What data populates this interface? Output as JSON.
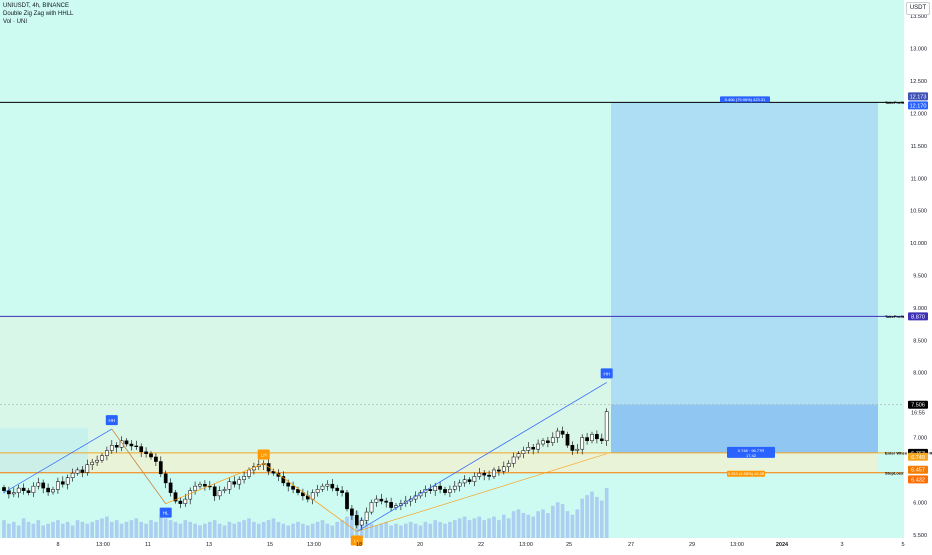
{
  "header": {
    "symbol_line": "UNIUSDT, 4h, BINANCE",
    "indicator_line": "Double Zig Zag with HHLL",
    "volume_line": "Vol · UNI",
    "currency_badge": "USDT"
  },
  "colors": {
    "background": "#cdfaf1",
    "candle_up": "#ffffff",
    "candle_down": "#000000",
    "zigzag_blue": "#2962ff",
    "zigzag_orange": "#ff9800",
    "target_zone": "#a7d8f3",
    "entry_zone": "#e9f3d8",
    "takeprofit_line": "#000000",
    "takeprofit2_line": "#3f2fb5",
    "entry_line": "#f5a623",
    "stoploss_line": "#f57c00"
  },
  "chart_data": {
    "type": "candlestick",
    "y_axis": {
      "range": [
        5.45,
        13.75
      ],
      "ticks": [
        "13.500",
        "13.000",
        "12.500",
        "12.000",
        "11.500",
        "11.000",
        "10.500",
        "10.000",
        "9.500",
        "9.000",
        "8.500",
        "8.000",
        "7.500",
        "7.000",
        "6.500",
        "6.000",
        "5.500"
      ],
      "side": "right"
    },
    "x_axis": {
      "ticks": [
        "8",
        "13:00",
        "11",
        "13",
        "15",
        "13:00",
        "18",
        "20",
        "22",
        "13:00",
        "25",
        "27",
        "29",
        "13:00",
        "2024",
        "3",
        "5"
      ]
    },
    "close_series": [
      6.18,
      6.13,
      6.15,
      6.22,
      6.18,
      6.15,
      6.25,
      6.3,
      6.22,
      6.16,
      6.2,
      6.32,
      6.28,
      6.38,
      6.45,
      6.5,
      6.46,
      6.58,
      6.62,
      6.65,
      6.72,
      6.8,
      6.88,
      6.85,
      6.95,
      6.9,
      6.87,
      6.86,
      6.78,
      6.75,
      6.7,
      6.63,
      6.44,
      6.3,
      6.15,
      6.02,
      5.98,
      6.05,
      6.18,
      6.25,
      6.28,
      6.25,
      6.24,
      6.1,
      6.18,
      6.2,
      6.32,
      6.28,
      6.35,
      6.4,
      6.5,
      6.55,
      6.58,
      6.6,
      6.48,
      6.45,
      6.4,
      6.3,
      6.25,
      6.2,
      6.15,
      6.1,
      6.05,
      6.15,
      6.2,
      6.25,
      6.28,
      6.22,
      6.18,
      6.15,
      5.9,
      5.8,
      5.65,
      5.72,
      5.85,
      6.0,
      6.05,
      6.02,
      6.0,
      5.92,
      5.95,
      5.98,
      6.02,
      6.05,
      6.1,
      6.15,
      6.2,
      6.18,
      6.25,
      6.2,
      6.15,
      6.2,
      6.25,
      6.3,
      6.35,
      6.32,
      6.4,
      6.45,
      6.42,
      6.4,
      6.5,
      6.48,
      6.55,
      6.6,
      6.7,
      6.75,
      6.8,
      6.85,
      6.82,
      6.9,
      6.95,
      6.92,
      7.0,
      7.1,
      7.05,
      6.88,
      6.8,
      6.82,
      7.0,
      6.95,
      7.05,
      6.98,
      6.95,
      7.4
    ],
    "volume_series": [
      1.0,
      0.8,
      0.9,
      0.7,
      1.1,
      0.9,
      0.8,
      1.0,
      0.7,
      0.8,
      0.9,
      1.0,
      0.8,
      0.9,
      0.7,
      1.0,
      0.9,
      0.8,
      0.9,
      1.0,
      1.1,
      1.2,
      0.9,
      1.0,
      0.8,
      0.9,
      1.0,
      1.1,
      0.9,
      0.8,
      1.0,
      0.9,
      1.2,
      1.1,
      1.0,
      0.9,
      0.8,
      1.0,
      0.9,
      0.8,
      0.7,
      0.8,
      0.9,
      1.0,
      0.8,
      0.7,
      0.9,
      0.8,
      0.9,
      1.0,
      1.1,
      0.9,
      0.8,
      0.9,
      1.0,
      1.1,
      0.9,
      0.8,
      0.7,
      0.8,
      0.9,
      0.8,
      0.7,
      0.8,
      0.9,
      1.0,
      0.8,
      0.7,
      0.9,
      1.0,
      1.2,
      1.3,
      1.5,
      1.1,
      0.9,
      0.8,
      0.7,
      0.8,
      0.9,
      0.7,
      0.8,
      0.7,
      0.8,
      0.9,
      0.8,
      0.7,
      0.9,
      0.8,
      1.0,
      0.9,
      0.8,
      0.9,
      1.0,
      1.1,
      1.2,
      1.0,
      1.1,
      1.2,
      1.0,
      1.1,
      1.2,
      1.0,
      1.3,
      1.1,
      1.5,
      1.6,
      1.4,
      1.3,
      1.2,
      1.5,
      1.6,
      1.4,
      1.8,
      2.0,
      1.9,
      1.5,
      1.3,
      1.6,
      2.2,
      2.4,
      2.6,
      2.3,
      2.1,
      2.8
    ],
    "zigzag_points": [
      {
        "candle": 0,
        "price": 6.15
      },
      {
        "candle": 22,
        "price": 7.13
      },
      {
        "candle": 33,
        "price": 5.98
      },
      {
        "candle": 53,
        "price": 6.6
      },
      {
        "candle": 72,
        "price": 5.55
      },
      {
        "candle": 123,
        "price": 7.85
      }
    ],
    "pivot_labels": [
      {
        "candle": 22,
        "price": 7.13,
        "text": "HH",
        "kind": "high"
      },
      {
        "candle": 33,
        "price": 5.98,
        "text": "HL",
        "kind": "low"
      },
      {
        "candle": 53,
        "price": 6.6,
        "text": "LH",
        "kind": "orange"
      },
      {
        "candle": 72,
        "price": 5.55,
        "text": "LL",
        "kind": "orange-low"
      },
      {
        "candle": 123,
        "price": 7.85,
        "text": "HH",
        "kind": "high"
      }
    ],
    "levels": [
      {
        "name": "TakeProfit",
        "label": "TakeProfit",
        "price": 12.17,
        "price_text": "12.170",
        "color": "#000000",
        "extra_price_text": "12.173"
      },
      {
        "name": "TakeProfit",
        "label": "TakeProfit",
        "price": 8.87,
        "price_text": "8.870",
        "color": "#3f2fb5"
      },
      {
        "name": "Entry",
        "label": "Enter When Cross And Retest this Level",
        "price": 6.763,
        "price_text": "6.763",
        "color": "#f5a623"
      },
      {
        "name": "StopLoss",
        "label": "StopLoss",
        "price": 6.457,
        "price_text": "6.457",
        "color": "#f57c00"
      }
    ],
    "current_price": {
      "price": 7.506,
      "text": "7.506",
      "countdown": "16:55"
    },
    "extra_price_tags": [
      {
        "price": 6.749,
        "text": "6.749"
      },
      {
        "price": 6.432,
        "text": "6.432"
      }
    ],
    "position_box": {
      "target_text": "5.406 (79.96%) 423.31",
      "entry_text": "0.748 · 96.77R",
      "entry_subtext": "17.42",
      "stop_text": "0.310 (4.58%) 46.28"
    }
  }
}
